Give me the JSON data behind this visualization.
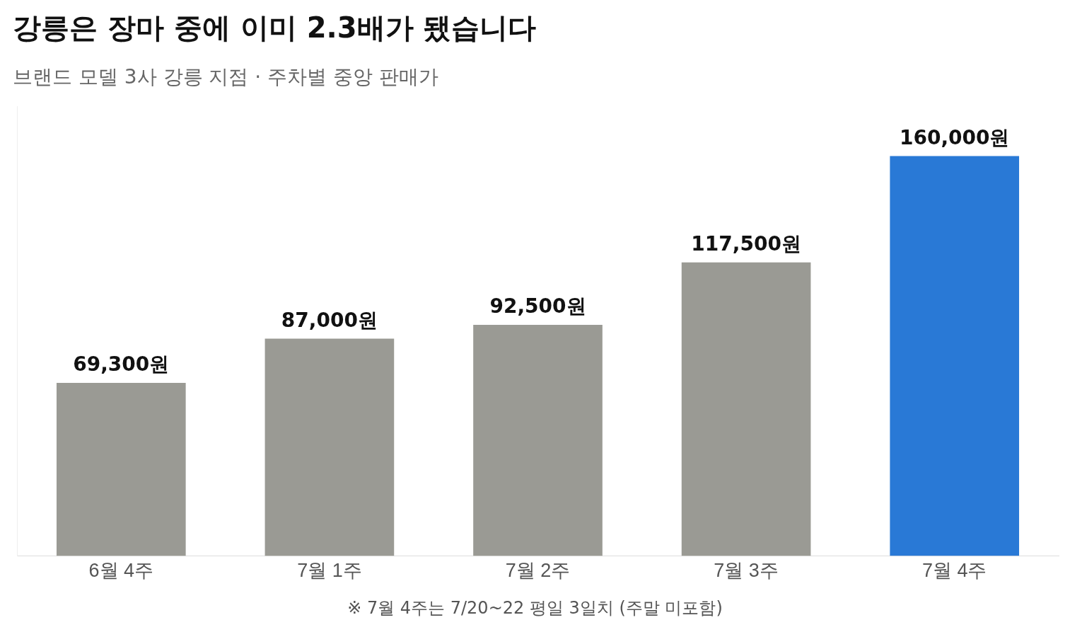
{
  "chart_data": {
    "type": "bar",
    "title": "강릉은 장마 중에 이미 2.3배가 됐습니다",
    "subtitle": "브랜드 모델 3사 강릉 지점 · 주차별 중앙 판매가",
    "categories": [
      "6월 4주",
      "7월 1주",
      "7월 2주",
      "7월 3주",
      "7월 4주"
    ],
    "values": [
      69300,
      87000,
      92500,
      117500,
      160000
    ],
    "colors": [
      "#9a9a94",
      "#9a9a94",
      "#9a9a94",
      "#9a9a94",
      "#2979d6"
    ],
    "value_labels": [
      "69,300원",
      "87,000원",
      "92,500원",
      "117,500원",
      "160,000원"
    ],
    "annotations": [
      "※ 7월 4주는 7/20~22 평일 3일치 (주말 미포함)"
    ],
    "grid": false,
    "legend": false
  }
}
